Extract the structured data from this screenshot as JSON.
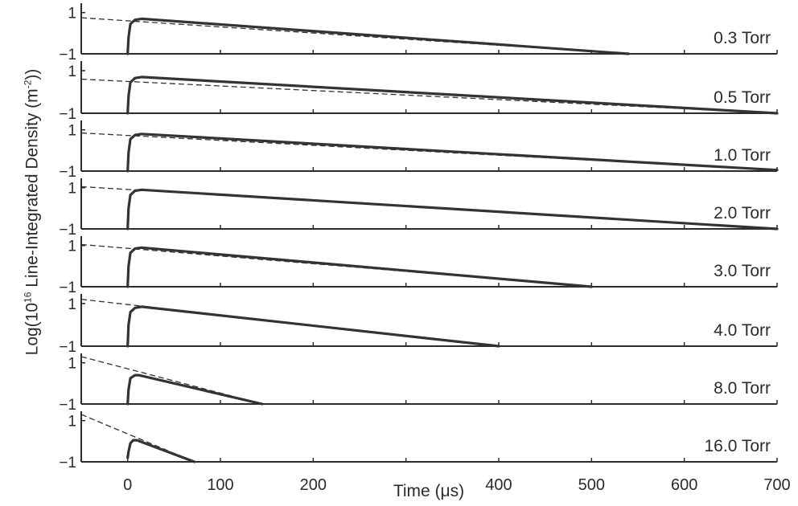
{
  "chart_data": {
    "type": "line",
    "xlabel": {
      "text": "Time (μs)"
    },
    "ylabel": {
      "prefix": "Log(10",
      "sup1": "16",
      "middle": " Line-Integrated Density (m",
      "sup2": "-2",
      "suffix": "))"
    },
    "x_ticks": [
      "0",
      "100",
      "200",
      "400",
      "500",
      "600",
      "700"
    ],
    "x_tick_values": [
      0,
      100,
      200,
      400,
      500,
      600,
      700
    ],
    "x_minor_ticks": [
      300
    ],
    "xlim": [
      -50,
      700
    ],
    "y_ticks": [
      "1",
      "−1"
    ],
    "y_tick_values": [
      1,
      -1
    ],
    "ylim": [
      -1,
      1.3
    ],
    "panels": [
      {
        "label": "0.3 Torr",
        "measured": {
          "x": [
            0,
            1,
            3,
            8,
            15,
            540
          ],
          "y": [
            -1,
            -0.2,
            0.45,
            0.65,
            0.7,
            -1
          ]
        },
        "fit": {
          "x": [
            -50,
            540
          ],
          "y": [
            0.75,
            -1
          ]
        }
      },
      {
        "label": "0.5 Torr",
        "measured": {
          "x": [
            0,
            1,
            3,
            8,
            15,
            700
          ],
          "y": [
            -1,
            -0.2,
            0.45,
            0.65,
            0.7,
            -1
          ]
        },
        "fit": {
          "x": [
            -50,
            700
          ],
          "y": [
            0.6,
            -1
          ]
        }
      },
      {
        "label": "1.0 Torr",
        "measured": {
          "x": [
            0,
            1,
            3,
            8,
            15,
            700
          ],
          "y": [
            -1,
            -0.1,
            0.55,
            0.75,
            0.8,
            -0.95
          ]
        },
        "fit": {
          "x": [
            -50,
            700
          ],
          "y": [
            0.85,
            -0.95
          ]
        }
      },
      {
        "label": "2.0 Torr",
        "measured": {
          "x": [
            0,
            1,
            3,
            8,
            15,
            700
          ],
          "y": [
            -1,
            0,
            0.65,
            0.85,
            0.9,
            -1
          ]
        },
        "fit": {
          "x": [
            -50,
            700
          ],
          "y": [
            1.05,
            -1
          ]
        }
      },
      {
        "label": "3.0 Torr",
        "measured": {
          "x": [
            0,
            1,
            3,
            8,
            15,
            500
          ],
          "y": [
            -1,
            0,
            0.65,
            0.85,
            0.9,
            -1
          ]
        },
        "fit": {
          "x": [
            -50,
            500
          ],
          "y": [
            1.05,
            -1
          ]
        }
      },
      {
        "label": "4.0 Torr",
        "measured": {
          "x": [
            0,
            1,
            3,
            8,
            15,
            400
          ],
          "y": [
            -1,
            0,
            0.6,
            0.8,
            0.85,
            -1
          ]
        },
        "fit": {
          "x": [
            -50,
            400
          ],
          "y": [
            1.2,
            -1
          ]
        }
      },
      {
        "label": "8.0 Torr",
        "measured": {
          "x": [
            0,
            1,
            3,
            8,
            12,
            145
          ],
          "y": [
            -1,
            -0.3,
            0.25,
            0.4,
            0.4,
            -1
          ]
        },
        "fit": {
          "x": [
            -50,
            145
          ],
          "y": [
            1.3,
            -1
          ]
        }
      },
      {
        "label": "16.0 Torr",
        "measured": {
          "x": [
            0,
            1,
            3,
            6,
            10,
            72
          ],
          "y": [
            -0.8,
            -0.5,
            -0.1,
            0.05,
            0.05,
            -1
          ]
        },
        "fit": {
          "x": [
            -50,
            72
          ],
          "y": [
            1.3,
            -1
          ]
        }
      }
    ],
    "colors": {
      "measured": "#333333",
      "fit": "#333333",
      "axis": "#2b2b2b"
    },
    "grid": false,
    "legend": false
  }
}
